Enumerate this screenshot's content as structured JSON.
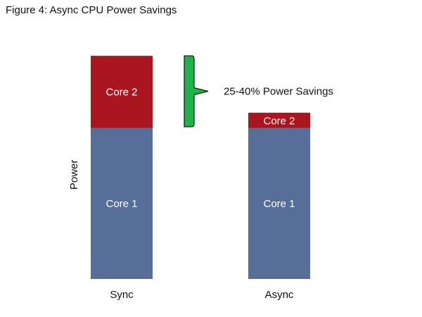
{
  "figure_title": "Figure 4: Async CPU Power Savings",
  "chart_data": {
    "type": "bar",
    "stacked": true,
    "title": "",
    "xlabel": "",
    "ylabel": "Power",
    "ylim": [
      0,
      100
    ],
    "categories": [
      "Sync",
      "Async"
    ],
    "series": [
      {
        "name": "Core 1",
        "values": [
          65,
          65
        ],
        "color": "#576e98"
      },
      {
        "name": "Core 2",
        "values": [
          31,
          6.5
        ],
        "color": "#aa1620"
      }
    ],
    "grid": false,
    "legend": "none",
    "annotation": {
      "text": "25-40% Power Savings",
      "range": [
        65.5,
        96
      ],
      "color": "#22b24c"
    }
  }
}
